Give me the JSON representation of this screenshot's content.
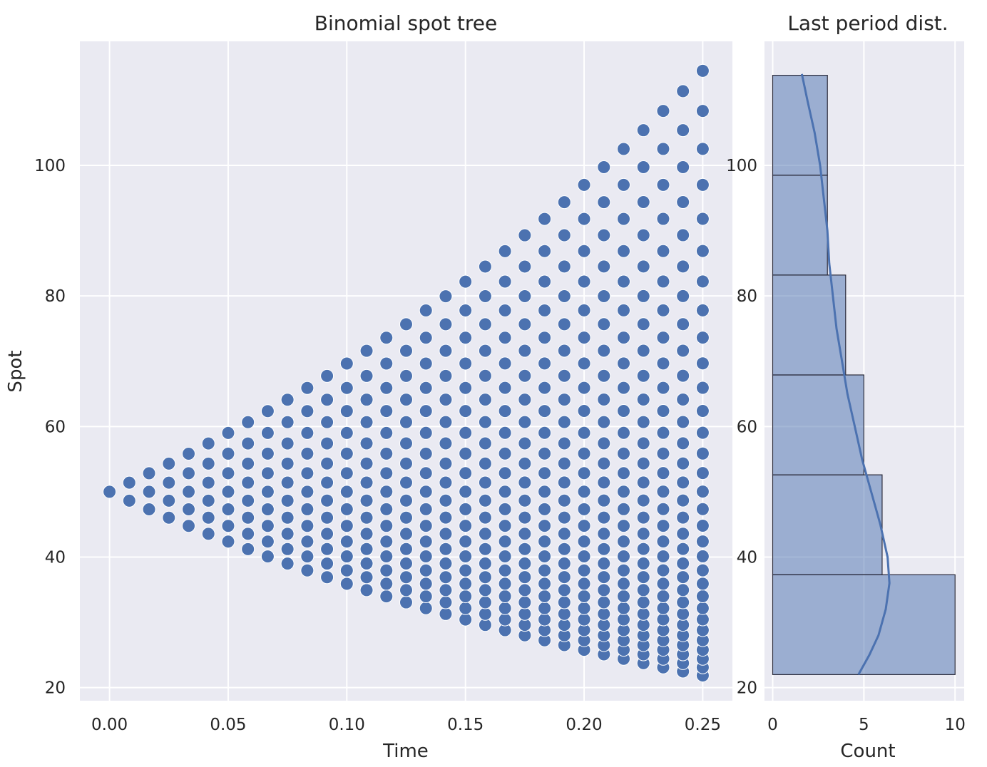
{
  "chart_data": [
    {
      "type": "scatter",
      "title": "Binomial spot tree",
      "xlabel": "Time",
      "ylabel": "Spot",
      "xlim": [
        -0.0125,
        0.2625
      ],
      "ylim": [
        18,
        119
      ],
      "xticks": [
        "0.00",
        "0.05",
        "0.10",
        "0.15",
        "0.20",
        "0.25"
      ],
      "yticks": [
        "20",
        "40",
        "60",
        "80",
        "100"
      ],
      "grid": true,
      "tree": {
        "S0": 50,
        "T": 0.25,
        "steps": 30,
        "u": 1.028,
        "d": 0.9728
      },
      "marker_color": "#4c72b0",
      "background_color": "#eaeaf2"
    },
    {
      "type": "bar",
      "title": "Last period dist.",
      "xlabel": "Count",
      "ylabel": "",
      "xlim": [
        0,
        10.5
      ],
      "xticks": [
        "0",
        "5",
        "10"
      ],
      "bins": [
        {
          "from": 22.0,
          "to": 37.3,
          "count": 10
        },
        {
          "from": 37.3,
          "to": 52.6,
          "count": 6
        },
        {
          "from": 52.6,
          "to": 67.9,
          "count": 5
        },
        {
          "from": 67.9,
          "to": 83.2,
          "count": 4
        },
        {
          "from": 83.2,
          "to": 98.5,
          "count": 3
        },
        {
          "from": 98.5,
          "to": 113.8,
          "count": 3
        }
      ],
      "kde": [
        {
          "spot": 22,
          "count": 4.7
        },
        {
          "spot": 25,
          "count": 5.3
        },
        {
          "spot": 28,
          "count": 5.8
        },
        {
          "spot": 32,
          "count": 6.2
        },
        {
          "spot": 36,
          "count": 6.4
        },
        {
          "spot": 40,
          "count": 6.3
        },
        {
          "spot": 45,
          "count": 5.9
        },
        {
          "spot": 50,
          "count": 5.4
        },
        {
          "spot": 55,
          "count": 4.9
        },
        {
          "spot": 60,
          "count": 4.5
        },
        {
          "spot": 65,
          "count": 4.1
        },
        {
          "spot": 70,
          "count": 3.8
        },
        {
          "spot": 75,
          "count": 3.5
        },
        {
          "spot": 80,
          "count": 3.3
        },
        {
          "spot": 85,
          "count": 3.1
        },
        {
          "spot": 90,
          "count": 3.0
        },
        {
          "spot": 95,
          "count": 2.8
        },
        {
          "spot": 100,
          "count": 2.6
        },
        {
          "spot": 105,
          "count": 2.3
        },
        {
          "spot": 110,
          "count": 1.9
        },
        {
          "spot": 114,
          "count": 1.6
        }
      ],
      "bar_color": "#4c72b0",
      "background_color": "#eaeaf2"
    }
  ]
}
